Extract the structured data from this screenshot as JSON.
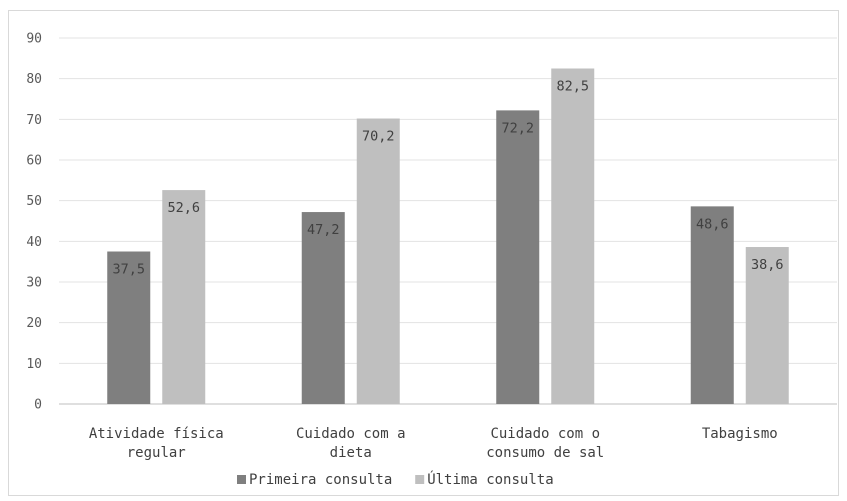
{
  "chart_data": {
    "type": "bar",
    "categories": [
      [
        "Atividade física",
        "regular"
      ],
      [
        "Cuidado com a",
        "dieta"
      ],
      [
        "Cuidado com o",
        "consumo de sal"
      ],
      [
        "Tabagismo"
      ]
    ],
    "series": [
      {
        "name": "Primeira consulta",
        "values": [
          37.5,
          47.2,
          72.2,
          48.6
        ],
        "labels": [
          "37,5",
          "47,2",
          "72,2",
          "48,6"
        ],
        "color": "#7f7f7f"
      },
      {
        "name": "Última consulta",
        "values": [
          52.6,
          70.2,
          82.5,
          38.6
        ],
        "labels": [
          "52,6",
          "70,2",
          "82,5",
          "38,6"
        ],
        "color": "#bfbfbf"
      }
    ],
    "ylim": [
      0,
      90
    ],
    "yticks": [
      0,
      10,
      20,
      30,
      40,
      50,
      60,
      70,
      80,
      90
    ],
    "grid": true,
    "legend_position": "bottom",
    "title": "",
    "xlabel": "",
    "ylabel": ""
  }
}
